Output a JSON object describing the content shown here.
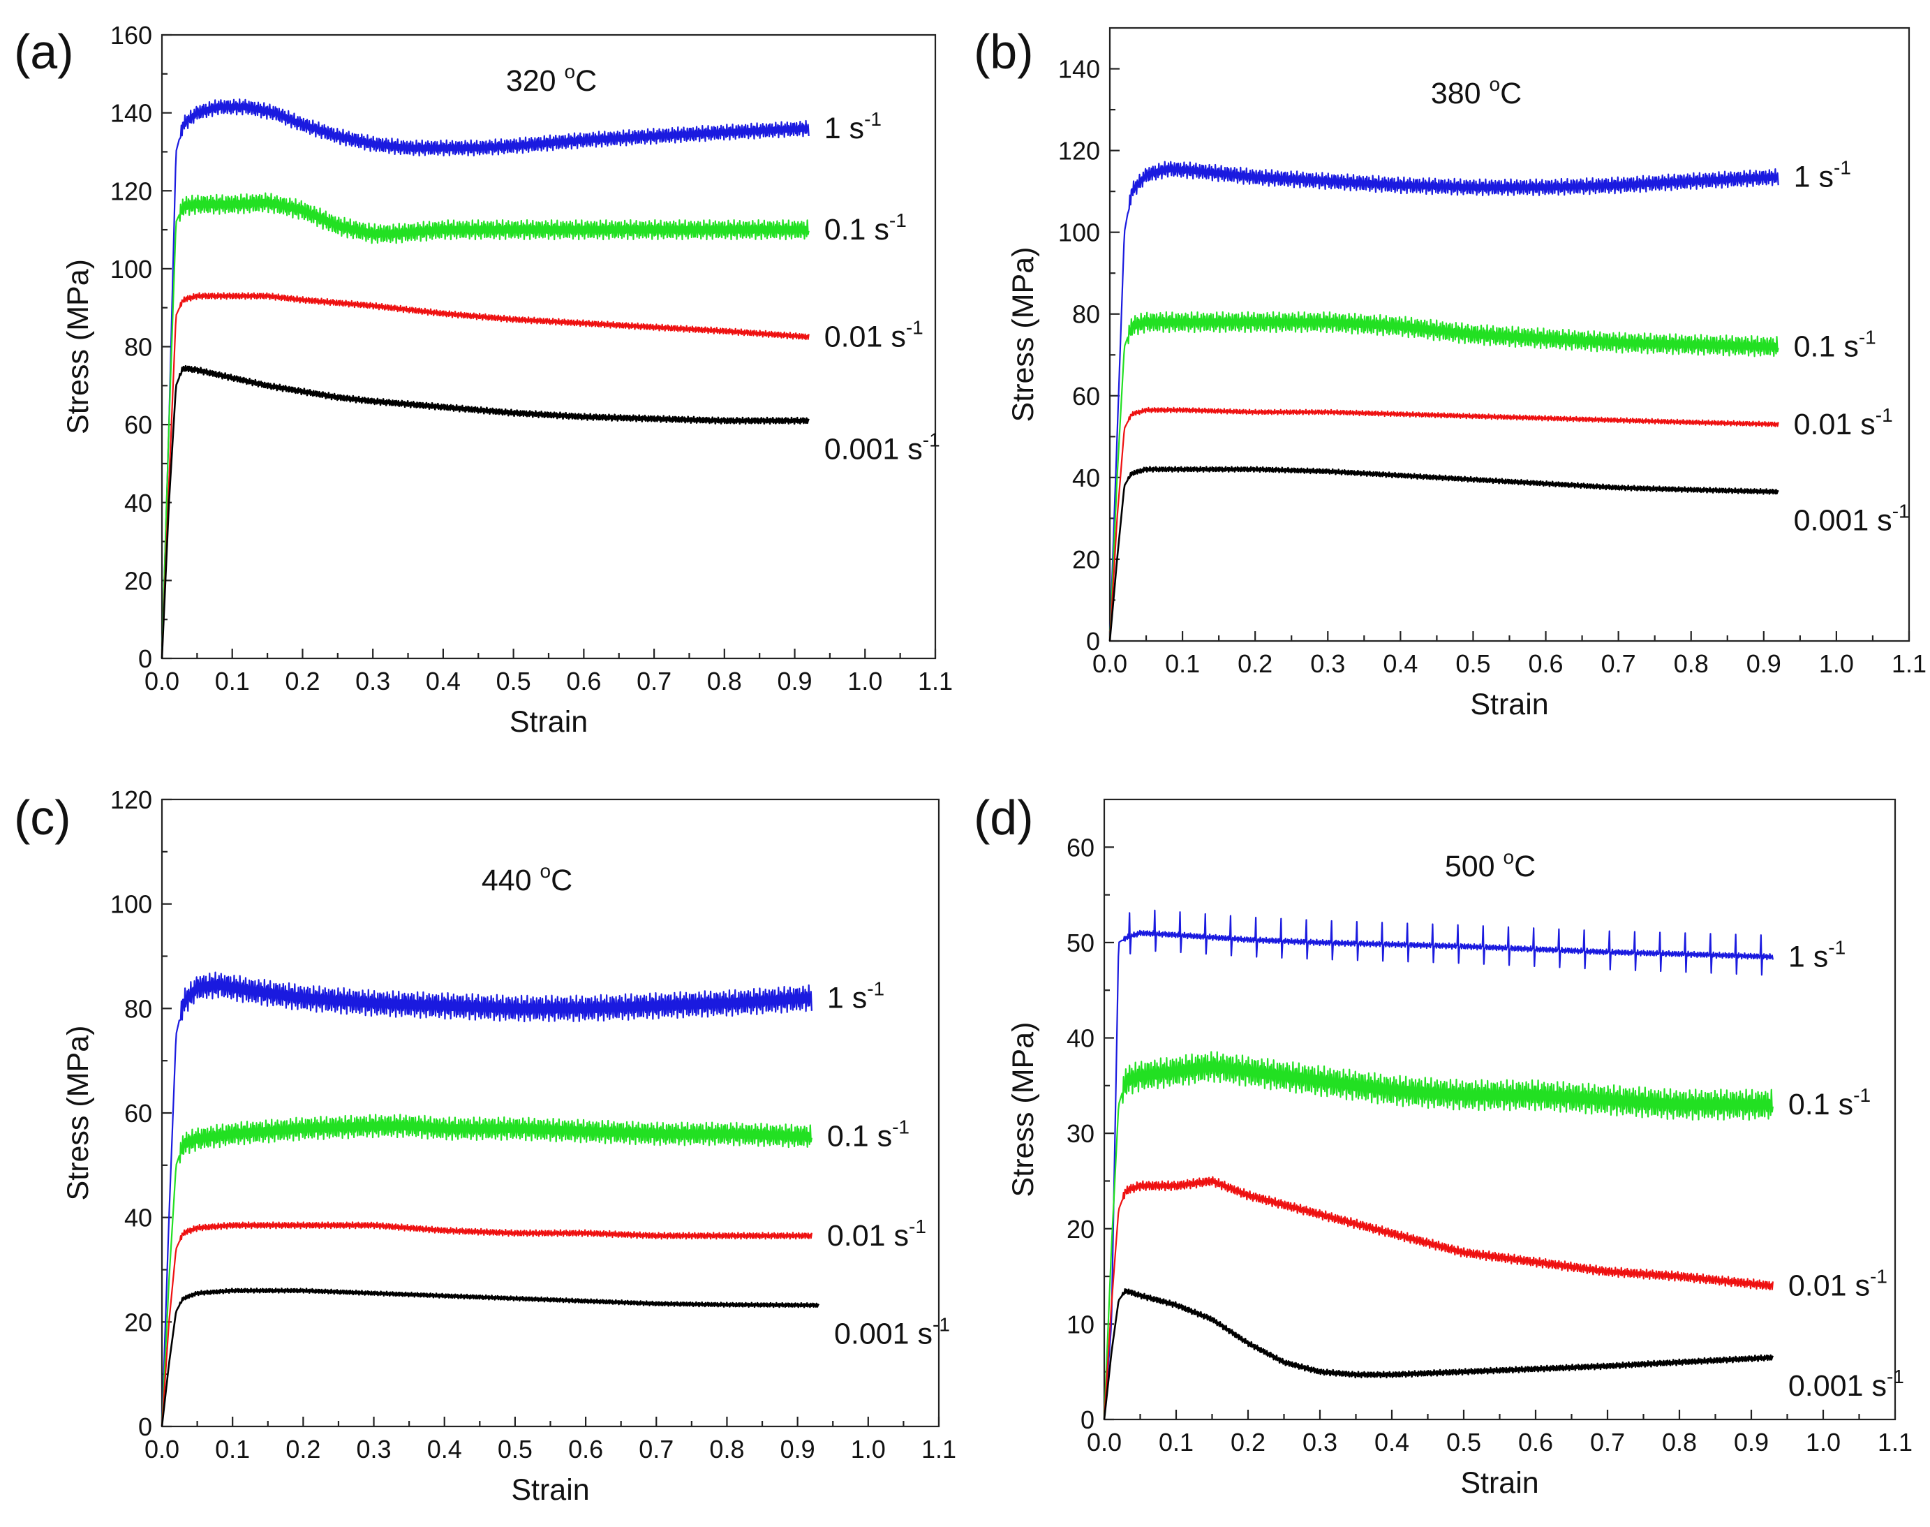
{
  "figure": {
    "colors": {
      "1 s-1": "#1a1adf",
      "0.1 s-1": "#22e022",
      "0.01 s-1": "#ee1111",
      "0.001 s-1": "#000000"
    }
  },
  "chart_data": [
    {
      "type": "line",
      "panel_label": "(a)",
      "title": "320",
      "title_sup": "o",
      "title_unit": "C",
      "xlabel": "Strain",
      "ylabel": "Stress (MPa)",
      "xlim": [
        0,
        1.1
      ],
      "ylim": [
        0,
        160
      ],
      "xticks": [
        "0.0",
        "0.1",
        "0.2",
        "0.3",
        "0.4",
        "0.5",
        "0.6",
        "0.7",
        "0.8",
        "0.9",
        "1.0",
        "1.1"
      ],
      "yticks": [
        "0",
        "20",
        "40",
        "60",
        "80",
        "100",
        "120",
        "140",
        "160"
      ],
      "series": [
        {
          "name": "1 s-1",
          "label_main": "1 s",
          "label_sup": "-1",
          "osc": 2.0,
          "x": [
            0,
            0.01,
            0.02,
            0.03,
            0.05,
            0.08,
            0.12,
            0.16,
            0.2,
            0.25,
            0.3,
            0.35,
            0.4,
            0.45,
            0.5,
            0.6,
            0.7,
            0.8,
            0.92
          ],
          "y": [
            0,
            60,
            130,
            137,
            140,
            141.5,
            141.5,
            140,
            137,
            134,
            132,
            131,
            131,
            131,
            131.5,
            133,
            134,
            135,
            136
          ]
        },
        {
          "name": "0.1 s-1",
          "label_main": "0.1 s",
          "label_sup": "-1",
          "osc": 2.5,
          "x": [
            0,
            0.01,
            0.02,
            0.03,
            0.05,
            0.1,
            0.15,
            0.2,
            0.25,
            0.3,
            0.33,
            0.4,
            0.5,
            0.6,
            0.7,
            0.8,
            0.92
          ],
          "y": [
            0,
            60,
            112,
            116,
            116.5,
            116.5,
            117,
            115,
            111,
            109,
            109,
            110,
            110,
            110,
            110,
            110,
            110
          ]
        },
        {
          "name": "0.01 s-1",
          "label_main": "0.01 s",
          "label_sup": "-1",
          "osc": 0.8,
          "x": [
            0,
            0.01,
            0.02,
            0.03,
            0.05,
            0.1,
            0.15,
            0.2,
            0.3,
            0.4,
            0.5,
            0.6,
            0.7,
            0.8,
            0.92
          ],
          "y": [
            0,
            45,
            88,
            92,
            93,
            93,
            93,
            92,
            90.5,
            88.5,
            87,
            86,
            85,
            84,
            82.5
          ]
        },
        {
          "name": "0.001 s-1",
          "label_main": "0.001 s",
          "label_sup": "-1",
          "osc": 0.8,
          "x": [
            0,
            0.01,
            0.02,
            0.03,
            0.05,
            0.1,
            0.15,
            0.2,
            0.25,
            0.3,
            0.4,
            0.5,
            0.6,
            0.7,
            0.8,
            0.92
          ],
          "y": [
            0,
            40,
            70,
            74.5,
            74,
            72,
            70,
            68.5,
            67,
            66,
            64.5,
            63,
            62,
            61.5,
            61,
            61
          ]
        }
      ]
    },
    {
      "type": "line",
      "panel_label": "(b)",
      "title": "380",
      "title_sup": "o",
      "title_unit": "C",
      "xlabel": "Strain",
      "ylabel": "Stress (MPa)",
      "xlim": [
        0,
        1.1
      ],
      "ylim": [
        0,
        150
      ],
      "xticks": [
        "0.0",
        "0.1",
        "0.2",
        "0.3",
        "0.4",
        "0.5",
        "0.6",
        "0.7",
        "0.8",
        "0.9",
        "1.0",
        "1.1"
      ],
      "yticks": [
        "0",
        "20",
        "40",
        "60",
        "80",
        "100",
        "120",
        "140"
      ],
      "series": [
        {
          "name": "1 s-1",
          "label_main": "1 s",
          "label_sup": "-1",
          "osc": 2.0,
          "x": [
            0,
            0.01,
            0.02,
            0.03,
            0.05,
            0.08,
            0.12,
            0.2,
            0.3,
            0.4,
            0.5,
            0.6,
            0.7,
            0.8,
            0.92
          ],
          "y": [
            0,
            50,
            100,
            110,
            114,
            115.5,
            115,
            113.5,
            112.5,
            111.5,
            111,
            111,
            111.5,
            112.5,
            113.5
          ]
        },
        {
          "name": "0.1 s-1",
          "label_main": "0.1 s",
          "label_sup": "-1",
          "osc": 2.5,
          "x": [
            0,
            0.01,
            0.02,
            0.03,
            0.05,
            0.1,
            0.2,
            0.3,
            0.4,
            0.5,
            0.6,
            0.7,
            0.8,
            0.92
          ],
          "y": [
            0,
            40,
            72,
            77,
            78,
            78,
            78,
            78,
            77,
            75,
            74,
            73,
            72.5,
            72
          ]
        },
        {
          "name": "0.01 s-1",
          "label_main": "0.01 s",
          "label_sup": "-1",
          "osc": 0.6,
          "x": [
            0,
            0.01,
            0.02,
            0.03,
            0.05,
            0.1,
            0.2,
            0.3,
            0.4,
            0.5,
            0.6,
            0.7,
            0.8,
            0.92
          ],
          "y": [
            0,
            30,
            52,
            55.5,
            56.5,
            56.5,
            56,
            56,
            55.5,
            55,
            54.5,
            54,
            53.5,
            53
          ]
        },
        {
          "name": "0.001 s-1",
          "label_main": "0.001 s",
          "label_sup": "-1",
          "osc": 0.6,
          "x": [
            0,
            0.01,
            0.02,
            0.03,
            0.05,
            0.1,
            0.2,
            0.3,
            0.4,
            0.5,
            0.6,
            0.7,
            0.8,
            0.92
          ],
          "y": [
            0,
            20,
            38,
            41,
            42,
            42,
            42,
            41.5,
            40.5,
            39.5,
            38.5,
            37.5,
            37,
            36.5
          ]
        }
      ]
    },
    {
      "type": "line",
      "panel_label": "(c)",
      "title": "440",
      "title_sup": "o",
      "title_unit": "C",
      "xlabel": "Strain",
      "ylabel": "Stress (MPa)",
      "xlim": [
        0,
        1.1
      ],
      "ylim": [
        0,
        120
      ],
      "xticks": [
        "0.0",
        "0.1",
        "0.2",
        "0.3",
        "0.4",
        "0.5",
        "0.6",
        "0.7",
        "0.8",
        "0.9",
        "1.0",
        "1.1"
      ],
      "yticks": [
        "0",
        "20",
        "40",
        "60",
        "80",
        "100",
        "120"
      ],
      "series": [
        {
          "name": "1 s-1",
          "label_main": "1 s",
          "label_sup": "-1",
          "osc": 2.5,
          "x": [
            0,
            0.01,
            0.02,
            0.03,
            0.05,
            0.08,
            0.12,
            0.2,
            0.3,
            0.4,
            0.5,
            0.6,
            0.7,
            0.8,
            0.92
          ],
          "y": [
            0,
            40,
            75,
            81,
            84,
            84.5,
            83.5,
            82,
            81,
            80.5,
            80,
            80,
            80.5,
            81,
            82
          ]
        },
        {
          "name": "0.1 s-1",
          "label_main": "0.1 s",
          "label_sup": "-1",
          "osc": 2.2,
          "x": [
            0,
            0.01,
            0.02,
            0.03,
            0.05,
            0.1,
            0.2,
            0.3,
            0.35,
            0.4,
            0.5,
            0.6,
            0.7,
            0.8,
            0.92
          ],
          "y": [
            0,
            28,
            50,
            54,
            55,
            56,
            57,
            57.5,
            57.5,
            57,
            57,
            56.5,
            56,
            56,
            55.5
          ]
        },
        {
          "name": "0.01 s-1",
          "label_main": "0.01 s",
          "label_sup": "-1",
          "osc": 0.6,
          "x": [
            0,
            0.01,
            0.02,
            0.03,
            0.05,
            0.1,
            0.2,
            0.3,
            0.4,
            0.5,
            0.6,
            0.7,
            0.8,
            0.92
          ],
          "y": [
            0,
            20,
            34,
            37,
            38,
            38.5,
            38.5,
            38.5,
            37.5,
            37,
            37,
            36.5,
            36.5,
            36.5
          ]
        },
        {
          "name": "0.001 s-1",
          "label_main": "0.001 s",
          "label_sup": "-1",
          "osc": 0.4,
          "x": [
            0,
            0.01,
            0.02,
            0.03,
            0.05,
            0.1,
            0.2,
            0.3,
            0.4,
            0.5,
            0.6,
            0.7,
            0.8,
            0.93
          ],
          "y": [
            0,
            12,
            22,
            24.5,
            25.5,
            26,
            26,
            25.5,
            25,
            24.5,
            24,
            23.5,
            23.3,
            23.2
          ]
        }
      ]
    },
    {
      "type": "line",
      "panel_label": "(d)",
      "title": "500",
      "title_sup": "o",
      "title_unit": "C",
      "xlabel": "Strain",
      "ylabel": "Stress (MPa)",
      "xlim": [
        0,
        1.1
      ],
      "ylim": [
        0,
        65
      ],
      "xticks": [
        "0.0",
        "0.1",
        "0.2",
        "0.3",
        "0.4",
        "0.5",
        "0.6",
        "0.7",
        "0.8",
        "0.9",
        "1.0",
        "1.1"
      ],
      "yticks": [
        "0",
        "10",
        "20",
        "30",
        "40",
        "50",
        "60"
      ],
      "series": [
        {
          "name": "1 s-1",
          "label_main": "1 s",
          "label_sup": "-1",
          "osc": 0.3,
          "spikes": 2.5,
          "x": [
            0,
            0.01,
            0.015,
            0.02,
            0.03,
            0.05,
            0.1,
            0.2,
            0.3,
            0.4,
            0.5,
            0.6,
            0.7,
            0.8,
            0.93
          ],
          "y": [
            0,
            10,
            30,
            50,
            50.5,
            51,
            50.8,
            50.3,
            50,
            49.8,
            49.6,
            49.3,
            49,
            48.8,
            48.5
          ]
        },
        {
          "name": "0.1 s-1",
          "label_main": "0.1 s",
          "label_sup": "-1",
          "osc": 1.6,
          "x": [
            0,
            0.01,
            0.02,
            0.03,
            0.05,
            0.1,
            0.15,
            0.2,
            0.3,
            0.4,
            0.5,
            0.6,
            0.7,
            0.8,
            0.93
          ],
          "y": [
            0,
            18,
            33,
            35.5,
            36,
            36.5,
            37,
            36.5,
            35.5,
            34.5,
            34,
            34,
            33.5,
            33,
            33
          ]
        },
        {
          "name": "0.01 s-1",
          "label_main": "0.01 s",
          "label_sup": "-1",
          "osc": 0.5,
          "x": [
            0,
            0.01,
            0.02,
            0.03,
            0.05,
            0.1,
            0.15,
            0.2,
            0.25,
            0.3,
            0.35,
            0.4,
            0.45,
            0.5,
            0.55,
            0.6,
            0.65,
            0.7,
            0.8,
            0.93
          ],
          "y": [
            0,
            12,
            22,
            24,
            24.5,
            24.5,
            25,
            23.5,
            22.5,
            21.5,
            20.5,
            19.5,
            18.5,
            17.5,
            17,
            16.5,
            16,
            15.5,
            15,
            14
          ]
        },
        {
          "name": "0.001 s-1",
          "label_main": "0.001 s",
          "label_sup": "-1",
          "osc": 0.3,
          "x": [
            0,
            0.01,
            0.02,
            0.03,
            0.05,
            0.1,
            0.15,
            0.2,
            0.25,
            0.3,
            0.35,
            0.4,
            0.5,
            0.6,
            0.7,
            0.8,
            0.93
          ],
          "y": [
            0,
            7,
            12.5,
            13.5,
            13,
            12,
            10.5,
            8,
            6,
            5,
            4.7,
            4.7,
            5,
            5.3,
            5.6,
            6,
            6.5
          ]
        }
      ]
    }
  ]
}
